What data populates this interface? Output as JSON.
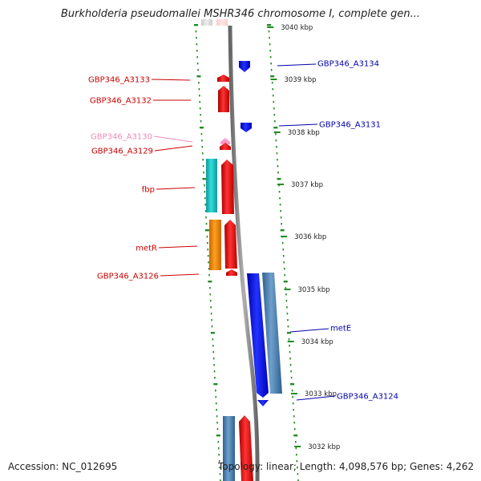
{
  "title": "Burkholderia pseudomallei MSHR346 chromosome I, complete gen...",
  "footer": {
    "accession": "Accession: NC_012695",
    "topology": "Topology: linear; Length: 4,098,576 bp; Genes: 4,262"
  },
  "colors": {
    "left_label": "#cc0000",
    "right_label": "#0000aa",
    "faded_label": "#ee88bb",
    "tick": "#228b22",
    "backbone": "#808080",
    "red_gene": "#ee1111",
    "blue_gene": "#1111dd",
    "cyan_gene": "#22cccc",
    "orange_gene": "#ff8800",
    "steel_gene": "#4f86b8"
  },
  "kbp_marks": [
    {
      "label": "3040 kbp"
    },
    {
      "label": "3039 kbp"
    },
    {
      "label": "3038 kbp"
    },
    {
      "label": "3037 kbp"
    },
    {
      "label": "3036 kbp"
    },
    {
      "label": "3035 kbp"
    },
    {
      "label": "3034 kbp"
    },
    {
      "label": "3033 kbp"
    },
    {
      "label": "3032 kbp"
    }
  ],
  "gene_labels": {
    "left": [
      {
        "text": "GBP346_A3133"
      },
      {
        "text": "GBP346_A3132"
      },
      {
        "text": "GBP346_A3130"
      },
      {
        "text": "GBP346_A3129"
      },
      {
        "text": "fbp"
      },
      {
        "text": "metR"
      },
      {
        "text": "GBP346_A3126"
      }
    ],
    "right": [
      {
        "text": "GBP346_A3134"
      },
      {
        "text": "GBP346_A3131"
      },
      {
        "text": "metE"
      },
      {
        "text": "GBP346_A3124"
      }
    ]
  }
}
